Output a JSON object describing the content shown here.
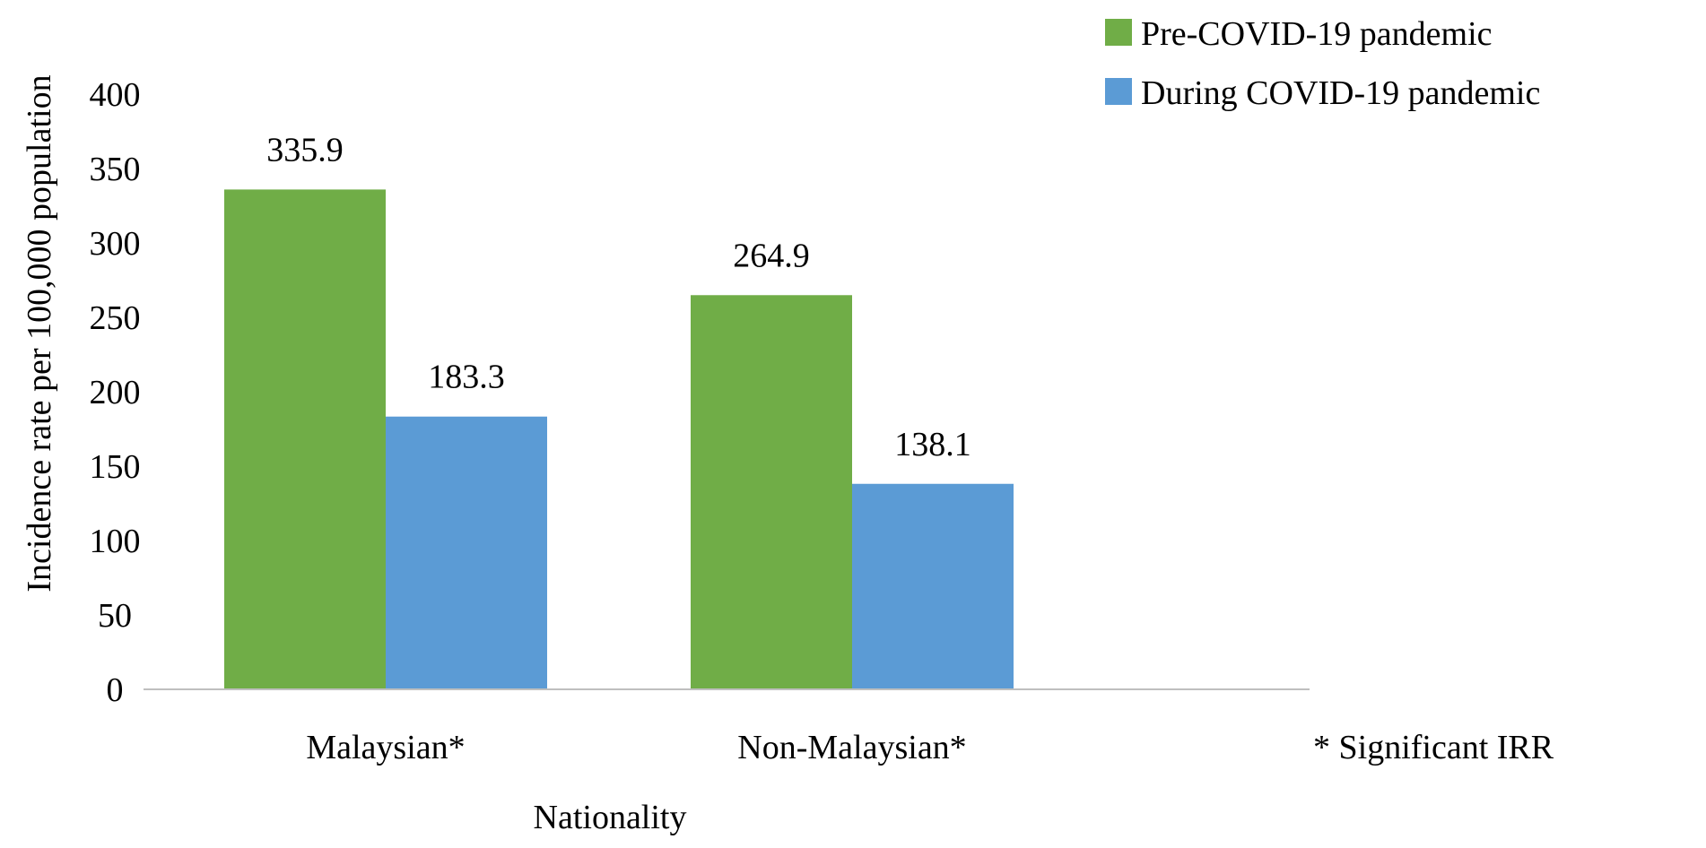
{
  "chart_data": {
    "type": "bar",
    "title": "",
    "xlabel": "Nationality",
    "ylabel": "Incidence rate per 100,000 population",
    "categories": [
      "Malaysian*",
      "Non-Malaysian*"
    ],
    "series": [
      {
        "name": "Pre-COVID-19 pandemic",
        "values": [
          335.9,
          264.9
        ],
        "color": "#70ad47"
      },
      {
        "name": "During COVID-19 pandemic",
        "values": [
          183.3,
          138.1
        ],
        "color": "#5b9bd5"
      }
    ],
    "data_labels": [
      [
        "335.9",
        "264.9"
      ],
      [
        "183.3",
        "138.1"
      ]
    ],
    "ylim": [
      0,
      400
    ],
    "yticks": [
      "0",
      "50",
      "100",
      "150",
      "200",
      "250",
      "300",
      "350",
      "400"
    ],
    "grid": false,
    "legend_position": "top-right",
    "note": "* Significant IRR",
    "axis_color": "#bfbfbf"
  }
}
